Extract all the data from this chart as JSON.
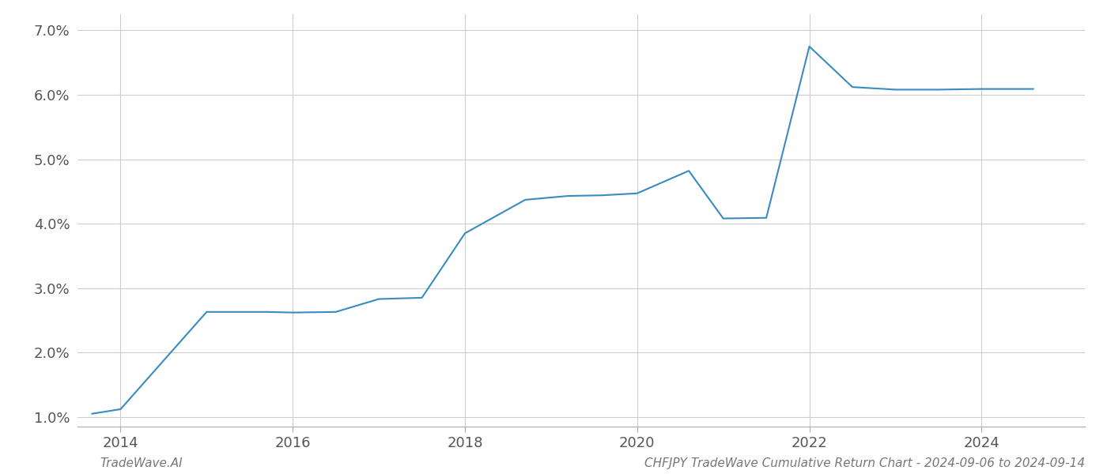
{
  "x_years": [
    2013.67,
    2014.0,
    2015.0,
    2015.7,
    2016.0,
    2016.5,
    2017.0,
    2017.5,
    2018.0,
    2018.7,
    2019.2,
    2019.6,
    2020.0,
    2020.6,
    2021.0,
    2021.5,
    2022.0,
    2022.5,
    2023.0,
    2023.5,
    2024.0,
    2024.6
  ],
  "y_values": [
    1.05,
    1.12,
    2.63,
    2.63,
    2.62,
    2.63,
    2.83,
    2.85,
    3.85,
    4.37,
    4.43,
    4.44,
    4.47,
    4.82,
    4.08,
    4.09,
    6.75,
    6.12,
    6.08,
    6.08,
    6.09,
    6.09
  ],
  "line_color": "#3a8bbf",
  "line_width": 1.5,
  "background_color": "#ffffff",
  "grid_color": "#cccccc",
  "xlim": [
    2013.5,
    2025.2
  ],
  "ylim": [
    0.85,
    7.25
  ],
  "yticks": [
    1.0,
    2.0,
    3.0,
    4.0,
    5.0,
    6.0,
    7.0
  ],
  "xticks": [
    2014,
    2016,
    2018,
    2020,
    2022,
    2024
  ],
  "footer_left": "TradeWave.AI",
  "footer_right": "CHFJPY TradeWave Cumulative Return Chart - 2024-09-06 to 2024-09-14",
  "tick_fontsize": 13,
  "footer_fontsize": 11
}
